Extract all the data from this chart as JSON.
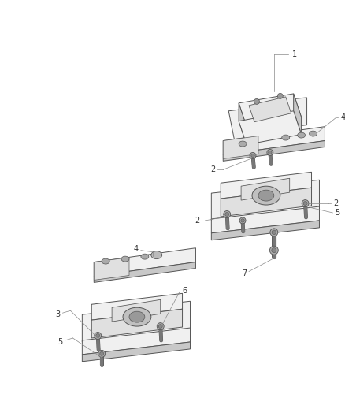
{
  "background_color": "#ffffff",
  "line_color": "#555555",
  "label_color": "#333333",
  "figure_width": 4.38,
  "figure_height": 5.33,
  "dpi": 100,
  "line_width": 0.7,
  "face_color_light": "#f0f0f0",
  "face_color_mid": "#e0e0e0",
  "face_color_dark": "#c8c8c8",
  "face_color_white": "#fafafa",
  "bolt_color": "#888888",
  "label_fontsize": 7.0,
  "leader_color": "#888888",
  "leader_lw": 0.5
}
